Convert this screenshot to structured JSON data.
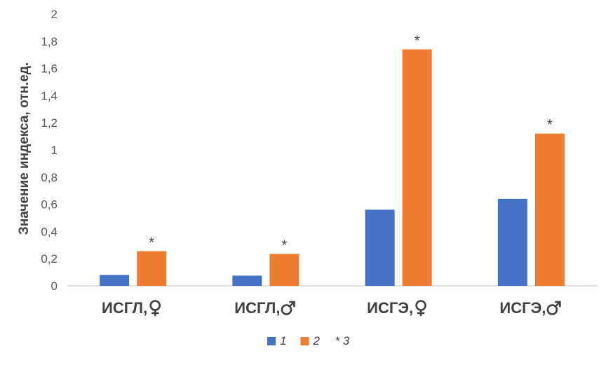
{
  "chart_data": {
    "type": "bar",
    "ylabel": "Значение индекса, отн.ед.",
    "xlabel": "",
    "ylim": [
      0,
      2
    ],
    "yticks": [
      "0",
      "0,2",
      "0,4",
      "0,6",
      "0,8",
      "1",
      "1,2",
      "1,4",
      "1,6",
      "1,8",
      "2"
    ],
    "grid": false,
    "categories": [
      {
        "text": "ИСГЛ,",
        "symbol": "female"
      },
      {
        "text": "ИСГЛ,",
        "symbol": "male"
      },
      {
        "text": "ИСГЭ,",
        "symbol": "female"
      },
      {
        "text": "ИСГЭ,",
        "symbol": "male"
      }
    ],
    "series": [
      {
        "name": "1",
        "color": "#4472C4",
        "values": [
          0.08,
          0.075,
          0.56,
          0.64
        ]
      },
      {
        "name": "2",
        "color": "#ED7D31",
        "values": [
          0.255,
          0.235,
          1.74,
          1.12
        ]
      }
    ],
    "annotations": {
      "marker": "*",
      "series": "2",
      "categories": [
        0,
        1,
        2,
        3
      ]
    },
    "legend": {
      "position": "bottom",
      "entries": [
        "1",
        "2",
        "* 3"
      ]
    }
  }
}
